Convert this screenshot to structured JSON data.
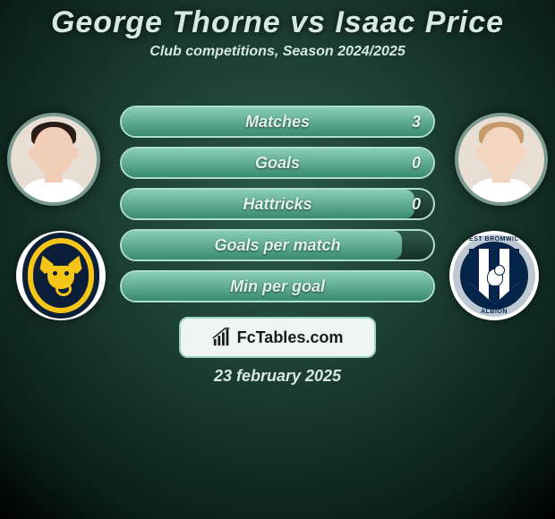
{
  "title": "George Thorne vs Isaac Price",
  "subtitle": "Club competitions, Season 2024/2025",
  "date": "23 february 2025",
  "brand": "FcTables.com",
  "colors": {
    "bar_border": "#b0ded0",
    "fill_top": "#8fd4bd",
    "fill_bottom": "#3a8f74"
  },
  "players": {
    "left": {
      "name": "George Thorne",
      "skin": "#f2cdb8",
      "hair": "#2b1d17",
      "shirt": "#ffffff",
      "club_name": "Oxford United"
    },
    "right": {
      "name": "Isaac Price",
      "skin": "#f4d5c0",
      "hair": "#c79a6b",
      "shirt": "#ffffff",
      "club_name": "West Bromwich Albion"
    }
  },
  "stats": [
    {
      "label": "Matches",
      "value": "3",
      "fill_pct": 100
    },
    {
      "label": "Goals",
      "value": "0",
      "fill_pct": 100
    },
    {
      "label": "Hattricks",
      "value": "0",
      "fill_pct": 94
    },
    {
      "label": "Goals per match",
      "value": "",
      "fill_pct": 90
    },
    {
      "label": "Min per goal",
      "value": "",
      "fill_pct": 100
    }
  ]
}
